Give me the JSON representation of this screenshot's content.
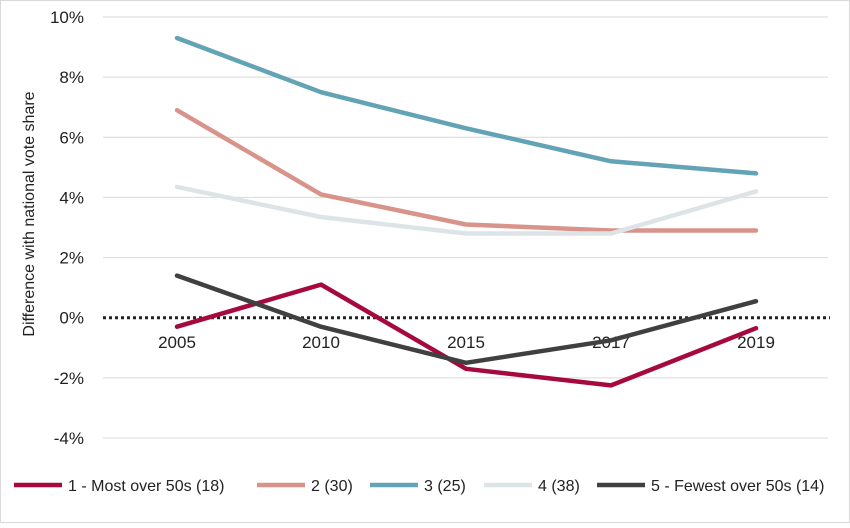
{
  "chart_data": {
    "type": "line",
    "title": "",
    "xlabel": "",
    "ylabel": "Difference with national vote share",
    "x": [
      "2005",
      "2010",
      "2015",
      "2017",
      "2019"
    ],
    "ylim": [
      -4,
      10
    ],
    "yticks": [
      -4,
      -2,
      0,
      2,
      4,
      6,
      8,
      10
    ],
    "ytick_labels": [
      "-4%",
      "-2%",
      "0%",
      "2%",
      "4%",
      "6%",
      "8%",
      "10%"
    ],
    "grid": "horizontal",
    "zero_line": "dotted",
    "legend_position": "bottom",
    "series": [
      {
        "name": "1 - Most over 50s (18)",
        "color": "#a6093d",
        "values": [
          -0.3,
          1.1,
          -1.7,
          -2.25,
          -0.35
        ]
      },
      {
        "name": "2 (30)",
        "color": "#d8948a",
        "values": [
          6.9,
          4.1,
          3.1,
          2.9,
          2.9
        ]
      },
      {
        "name": "3 (25)",
        "color": "#63a3b6",
        "values": [
          9.3,
          7.5,
          6.3,
          5.2,
          4.8
        ]
      },
      {
        "name": "4 (38)",
        "color": "#dde4e8",
        "values": [
          4.35,
          3.35,
          2.8,
          2.8,
          4.2
        ]
      },
      {
        "name": "5 - Fewest over 50s (14)",
        "color": "#404040",
        "values": [
          1.4,
          -0.3,
          -1.5,
          -0.75,
          0.55
        ]
      }
    ]
  }
}
